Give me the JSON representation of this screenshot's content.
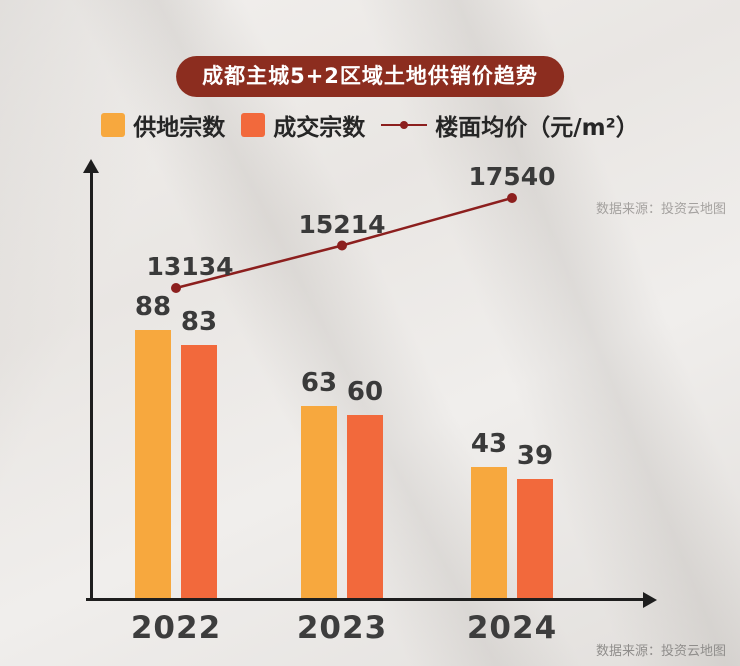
{
  "title": "成都主城5+2区域土地供销价趋势",
  "watermark": "数据来源：投资云地图",
  "legend": [
    {
      "label": "供地宗数",
      "color": "#F7A83E",
      "type": "square"
    },
    {
      "label": "成交宗数",
      "color": "#F2693C",
      "type": "square"
    },
    {
      "label": "楼面均价（元/m²）",
      "color": "#8C1F1E",
      "type": "line"
    }
  ],
  "colors": {
    "title_badge": "#8C2D1F",
    "supply_bar": "#F7A83E",
    "deal_bar": "#F2693C",
    "price_line": "#8C1F1E",
    "axis": "#1e1e1e"
  },
  "chart_data": {
    "type": "bar",
    "title": "成都主城5+2区域土地供销价趋势",
    "categories": [
      "2022",
      "2023",
      "2024"
    ],
    "series": [
      {
        "name": "供地宗数",
        "type": "bar",
        "color": "#F7A83E",
        "values": [
          88,
          63,
          43
        ]
      },
      {
        "name": "成交宗数",
        "type": "bar",
        "color": "#F2693C",
        "values": [
          83,
          60,
          39
        ]
      },
      {
        "name": "楼面均价（元/m²）",
        "type": "line",
        "color": "#8C1F1E",
        "values": [
          13134,
          15214,
          17540
        ]
      }
    ],
    "xlabel": "",
    "ylabel": "",
    "grid": false,
    "legend_position": "top",
    "axis_style": "arrow axes, no tick labels",
    "source_note": "数据来源：投资云地图"
  }
}
